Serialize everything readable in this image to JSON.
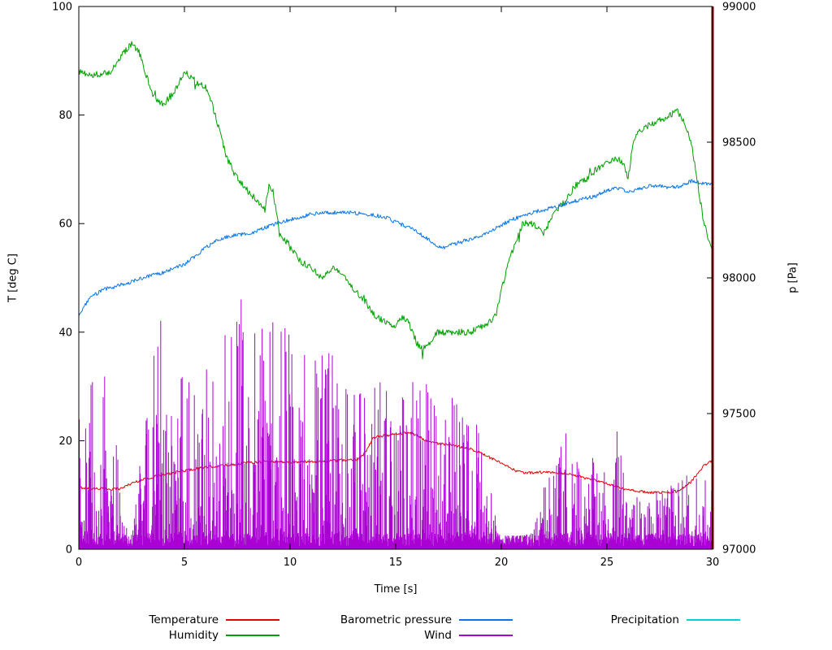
{
  "figure": {
    "background": "#ffffff",
    "border_color": "#000000"
  },
  "axes": {
    "x": {
      "label": "Time [s]",
      "min": 0,
      "max": 30,
      "ticks": [
        0,
        5,
        10,
        15,
        20,
        25,
        30
      ]
    },
    "y_left": {
      "label": "T [deg C]",
      "min": 0,
      "max": 100,
      "ticks": [
        0,
        20,
        40,
        60,
        80,
        100
      ]
    },
    "y_right": {
      "label": "p [Pa]",
      "min": 97000,
      "max": 99000,
      "ticks": [
        97000,
        97500,
        98000,
        98500,
        99000
      ]
    }
  },
  "legend": {
    "rows": 2,
    "items": [
      {
        "label": "Temperature",
        "color": "#e60000",
        "row": 0,
        "col": 0
      },
      {
        "label": "Barometric pressure",
        "color": "#0a74e6",
        "row": 0,
        "col": 1
      },
      {
        "label": "Precipitation",
        "color": "#00d0d0",
        "row": 0,
        "col": 2
      },
      {
        "label": "Humidity",
        "color": "#00a000",
        "row": 1,
        "col": 0
      },
      {
        "label": "Wind",
        "color": "#aa00d4",
        "row": 1,
        "col": 1
      }
    ]
  },
  "chart_data": {
    "type": "line",
    "title": "",
    "xlabel": "Time [s]",
    "ylabel_left": "T [deg C]",
    "ylabel_right": "p [Pa]",
    "x_range": [
      0,
      30
    ],
    "y_left_range": [
      0,
      100
    ],
    "y_right_range": [
      97000,
      99000
    ],
    "grid": false,
    "legend_position": "bottom",
    "series": [
      {
        "name": "Temperature",
        "axis": "left",
        "color": "#e60000",
        "style": "line",
        "noise": 0.25,
        "points": [
          [
            0,
            11.4
          ],
          [
            0.5,
            11.2
          ],
          [
            1,
            11.2
          ],
          [
            1.5,
            11.1
          ],
          [
            2,
            11.2
          ],
          [
            2.3,
            11.8
          ],
          [
            2.6,
            12.3
          ],
          [
            3,
            12.8
          ],
          [
            3.5,
            13.3
          ],
          [
            4,
            13.7
          ],
          [
            4.5,
            14.1
          ],
          [
            5,
            14.5
          ],
          [
            5.5,
            14.8
          ],
          [
            6,
            15.1
          ],
          [
            6.5,
            15.3
          ],
          [
            7,
            15.5
          ],
          [
            7.5,
            15.7
          ],
          [
            8,
            16.0
          ],
          [
            8.5,
            16.1
          ],
          [
            9,
            16.2
          ],
          [
            9.5,
            16.1
          ],
          [
            10,
            16.0
          ],
          [
            10.5,
            16.1
          ],
          [
            11,
            16.2
          ],
          [
            11.5,
            16.2
          ],
          [
            12,
            16.3
          ],
          [
            12.5,
            16.4
          ],
          [
            13,
            16.5
          ],
          [
            13.3,
            16.8
          ],
          [
            13.6,
            18.0
          ],
          [
            13.9,
            20.3
          ],
          [
            14.2,
            20.8
          ],
          [
            14.5,
            21.0
          ],
          [
            15,
            21.2
          ],
          [
            15.5,
            21.5
          ],
          [
            15.8,
            21.3
          ],
          [
            16,
            21.0
          ],
          [
            16.3,
            20.3
          ],
          [
            16.6,
            19.8
          ],
          [
            17,
            19.5
          ],
          [
            17.5,
            19.2
          ],
          [
            18,
            18.9
          ],
          [
            18.5,
            18.6
          ],
          [
            19,
            17.8
          ],
          [
            19.3,
            17.2
          ],
          [
            19.6,
            16.6
          ],
          [
            20,
            15.8
          ],
          [
            20.4,
            15.0
          ],
          [
            20.8,
            14.3
          ],
          [
            21,
            14.1
          ],
          [
            21.5,
            14.1
          ],
          [
            22,
            14.2
          ],
          [
            22.5,
            14.1
          ],
          [
            23,
            14.0
          ],
          [
            23.5,
            13.6
          ],
          [
            24,
            13.1
          ],
          [
            24.5,
            12.6
          ],
          [
            25,
            12.1
          ],
          [
            25.5,
            11.4
          ],
          [
            26,
            10.9
          ],
          [
            26.5,
            10.7
          ],
          [
            27,
            10.5
          ],
          [
            27.5,
            10.4
          ],
          [
            28,
            10.5
          ],
          [
            28.3,
            10.7
          ],
          [
            28.6,
            11.3
          ],
          [
            29,
            12.5
          ],
          [
            29.3,
            14.0
          ],
          [
            29.6,
            15.5
          ],
          [
            30,
            16.3
          ]
        ]
      },
      {
        "name": "Humidity",
        "axis": "left",
        "color": "#00a000",
        "style": "line",
        "noise": 0.6,
        "spikes": true,
        "points": [
          [
            0,
            88
          ],
          [
            0.5,
            87.5
          ],
          [
            1,
            87.5
          ],
          [
            1.5,
            88
          ],
          [
            2,
            91
          ],
          [
            2.5,
            93
          ],
          [
            2.8,
            92
          ],
          [
            3,
            90
          ],
          [
            3.3,
            86
          ],
          [
            3.6,
            83
          ],
          [
            4,
            82
          ],
          [
            4.5,
            84
          ],
          [
            5,
            88
          ],
          [
            5.3,
            87
          ],
          [
            5.6,
            86
          ],
          [
            6,
            85
          ],
          [
            6.3,
            82
          ],
          [
            6.6,
            78
          ],
          [
            7,
            72
          ],
          [
            7.3,
            70
          ],
          [
            7.6,
            68
          ],
          [
            8,
            66
          ],
          [
            8.5,
            64
          ],
          [
            8.8,
            63
          ],
          [
            9,
            67
          ],
          [
            9.2,
            66
          ],
          [
            9.5,
            58
          ],
          [
            10,
            56
          ],
          [
            10.5,
            53
          ],
          [
            11,
            52
          ],
          [
            11.5,
            50
          ],
          [
            12,
            52
          ],
          [
            12.3,
            51
          ],
          [
            12.6,
            50
          ],
          [
            13,
            48
          ],
          [
            13.5,
            46
          ],
          [
            14,
            43
          ],
          [
            14.5,
            42
          ],
          [
            15,
            41
          ],
          [
            15.3,
            43
          ],
          [
            15.6,
            42
          ],
          [
            16,
            38
          ],
          [
            16.3,
            37
          ],
          [
            16.6,
            38
          ],
          [
            17,
            40
          ],
          [
            17.5,
            40
          ],
          [
            18,
            40
          ],
          [
            18.5,
            40
          ],
          [
            19,
            41
          ],
          [
            19.5,
            42
          ],
          [
            19.8,
            44
          ],
          [
            20,
            48
          ],
          [
            20.3,
            52
          ],
          [
            20.6,
            56
          ],
          [
            21,
            60
          ],
          [
            21.5,
            60
          ],
          [
            22,
            58
          ],
          [
            22.5,
            62
          ],
          [
            23,
            64
          ],
          [
            23.5,
            67
          ],
          [
            24,
            68
          ],
          [
            24.5,
            70
          ],
          [
            25,
            71
          ],
          [
            25.5,
            72
          ],
          [
            25.8,
            71
          ],
          [
            26,
            68
          ],
          [
            26.2,
            74
          ],
          [
            26.5,
            77
          ],
          [
            27,
            78
          ],
          [
            27.5,
            79
          ],
          [
            28,
            80
          ],
          [
            28.3,
            81
          ],
          [
            28.6,
            79
          ],
          [
            29,
            75
          ],
          [
            29.2,
            70
          ],
          [
            29.5,
            62
          ],
          [
            29.8,
            57
          ],
          [
            30,
            55
          ]
        ]
      },
      {
        "name": "Barometric pressure",
        "axis": "right",
        "color": "#0a74e6",
        "style": "line",
        "noise": 7,
        "points": [
          [
            0,
            97860
          ],
          [
            0.3,
            97900
          ],
          [
            0.6,
            97930
          ],
          [
            1,
            97950
          ],
          [
            1.3,
            97960
          ],
          [
            1.6,
            97965
          ],
          [
            2,
            97975
          ],
          [
            2.5,
            97985
          ],
          [
            3,
            98000
          ],
          [
            3.5,
            98010
          ],
          [
            4,
            98020
          ],
          [
            4.5,
            98035
          ],
          [
            5,
            98050
          ],
          [
            5.5,
            98080
          ],
          [
            6,
            98110
          ],
          [
            6.5,
            98135
          ],
          [
            7,
            98150
          ],
          [
            7.5,
            98160
          ],
          [
            8,
            98160
          ],
          [
            8.5,
            98175
          ],
          [
            9,
            98190
          ],
          [
            9.5,
            98205
          ],
          [
            10,
            98215
          ],
          [
            10.5,
            98225
          ],
          [
            11,
            98235
          ],
          [
            11.5,
            98240
          ],
          [
            12,
            98240
          ],
          [
            12.5,
            98245
          ],
          [
            13,
            98240
          ],
          [
            13.5,
            98235
          ],
          [
            14,
            98230
          ],
          [
            14.5,
            98225
          ],
          [
            15,
            98205
          ],
          [
            15.5,
            98190
          ],
          [
            16,
            98170
          ],
          [
            16.5,
            98145
          ],
          [
            17,
            98115
          ],
          [
            17.2,
            98110
          ],
          [
            17.5,
            98118
          ],
          [
            18,
            98130
          ],
          [
            18.5,
            98142
          ],
          [
            19,
            98155
          ],
          [
            19.5,
            98172
          ],
          [
            20,
            98195
          ],
          [
            20.5,
            98215
          ],
          [
            21,
            98228
          ],
          [
            21.5,
            98242
          ],
          [
            22,
            98250
          ],
          [
            22.5,
            98260
          ],
          [
            23,
            98272
          ],
          [
            23.5,
            98283
          ],
          [
            24,
            98293
          ],
          [
            24.5,
            98303
          ],
          [
            25,
            98322
          ],
          [
            25.5,
            98330
          ],
          [
            26,
            98318
          ],
          [
            26.5,
            98328
          ],
          [
            27,
            98338
          ],
          [
            27.5,
            98338
          ],
          [
            28,
            98333
          ],
          [
            28.5,
            98338
          ],
          [
            29,
            98358
          ],
          [
            29.5,
            98350
          ],
          [
            30,
            98345
          ]
        ]
      },
      {
        "name": "Wind",
        "axis": "left",
        "color": "#aa00d4",
        "style": "impulses",
        "envelope": [
          [
            0,
            30
          ],
          [
            0.5,
            34
          ],
          [
            1,
            38
          ],
          [
            1.5,
            25
          ],
          [
            1.8,
            20
          ],
          [
            2.1,
            5
          ],
          [
            2.5,
            4
          ],
          [
            2.8,
            12
          ],
          [
            3,
            20
          ],
          [
            3.5,
            35
          ],
          [
            4,
            46
          ],
          [
            4.5,
            38
          ],
          [
            5,
            30
          ],
          [
            5.5,
            32
          ],
          [
            6,
            35
          ],
          [
            6.5,
            38
          ],
          [
            7,
            42
          ],
          [
            7.5,
            45
          ],
          [
            8,
            48
          ],
          [
            8.5,
            46
          ],
          [
            9,
            47
          ],
          [
            9.5,
            42
          ],
          [
            10,
            40
          ],
          [
            10.5,
            39
          ],
          [
            11,
            38
          ],
          [
            11.5,
            37
          ],
          [
            12,
            36
          ],
          [
            12.5,
            33
          ],
          [
            13,
            30
          ],
          [
            13.5,
            31
          ],
          [
            14,
            32
          ],
          [
            14.5,
            30
          ],
          [
            15,
            28
          ],
          [
            15.5,
            31
          ],
          [
            16,
            34
          ],
          [
            16.5,
            32
          ],
          [
            17,
            30
          ],
          [
            17.5,
            29
          ],
          [
            18,
            28
          ],
          [
            18.5,
            26
          ],
          [
            19,
            25
          ],
          [
            19.3,
            18
          ],
          [
            19.6,
            8
          ],
          [
            20,
            2.5
          ],
          [
            20.5,
            2.5
          ],
          [
            21,
            2.5
          ],
          [
            21.5,
            3
          ],
          [
            22,
            12
          ],
          [
            22.5,
            16
          ],
          [
            23,
            22
          ],
          [
            23.5,
            18
          ],
          [
            24,
            15
          ],
          [
            24.5,
            18
          ],
          [
            25,
            23
          ],
          [
            25.5,
            22
          ],
          [
            26,
            12
          ],
          [
            26.5,
            10
          ],
          [
            27,
            10
          ],
          [
            27.5,
            11
          ],
          [
            28,
            12
          ],
          [
            28.5,
            13
          ],
          [
            29,
            15
          ],
          [
            29.5,
            14
          ],
          [
            30,
            14
          ]
        ]
      },
      {
        "name": "Precipitation",
        "axis": "right",
        "color": "#00d0d0",
        "style": "line",
        "points": []
      }
    ],
    "annotations": [
      {
        "type": "vline",
        "x": 30,
        "color": "#8b0000",
        "width": 3
      }
    ]
  }
}
